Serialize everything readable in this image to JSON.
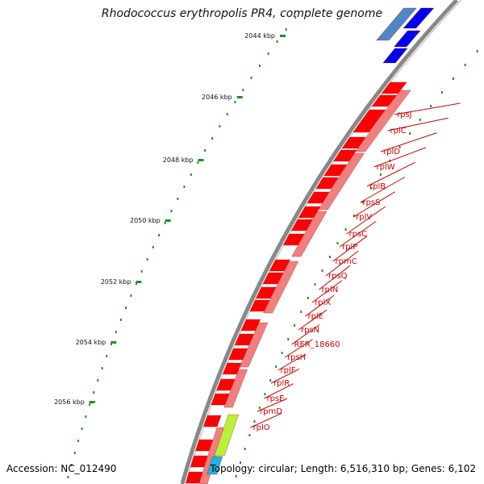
{
  "title": "Rhodococcus erythropolis PR4, complete genome",
  "footer": {
    "accession": "Accession: NC_012490",
    "stats": "Topology: circular; Length: 6,516,310 bp; Genes: 6,102"
  },
  "colors": {
    "backbone": "#888888",
    "gene_cds": "#ff0000",
    "gene_pale": "#f08080",
    "gene_blue": "#0000ee",
    "gene_steel": "#4f86c6",
    "gene_lime": "#b8f03a",
    "gene_cyan": "#1eb4e6",
    "label_line": "#cc0000",
    "tick": "#1f8f1f"
  },
  "kbp_labels": [
    "2044 kbp",
    "2046 kbp",
    "2048 kbp",
    "2050 kbp",
    "2052 kbp",
    "2054 kbp",
    "2056 kbp"
  ],
  "gene_labels": [
    "rpsJ",
    "rplC",
    "rplD",
    "rplW",
    "rplB",
    "rpsS",
    "rplV",
    "rpsC",
    "rplP",
    "rpmC",
    "rpsQ",
    "rplN",
    "rplX",
    "rplE",
    "rpsN",
    "RER_18660",
    "rpsH",
    "rplF",
    "rplR",
    "rpsE",
    "rpmD",
    "rplO"
  ]
}
